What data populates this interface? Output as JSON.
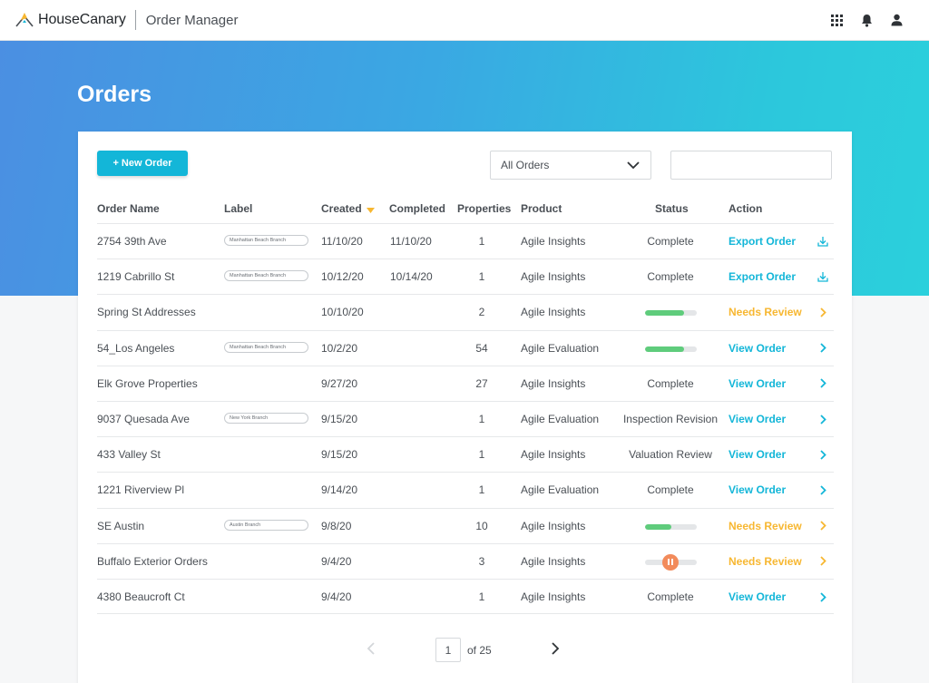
{
  "header": {
    "brand": "HouseCanary",
    "app_title": "Order Manager",
    "icons": [
      "logo-icon",
      "apps-grid-icon",
      "bell-icon",
      "user-icon"
    ]
  },
  "page": {
    "title": "Orders"
  },
  "toolbar": {
    "new_order_label": "+ New Order",
    "filter_value": "All Orders",
    "search_value": ""
  },
  "colors": {
    "accent": "#13b6d8",
    "needs_review": "#f7b731",
    "progress": "#5fcc7c",
    "paused": "#f28b5b",
    "hero_start": "#4b8fe2",
    "hero_end": "#2bd0dc"
  },
  "table": {
    "columns": {
      "order_name": "Order Name",
      "label": "Label",
      "created": "Created",
      "completed": "Completed",
      "properties": "Properties",
      "product": "Product",
      "status": "Status",
      "action": "Action"
    },
    "sort": {
      "column": "Created",
      "direction": "desc"
    },
    "rows": [
      {
        "name": "2754 39th Ave",
        "label": "Manhattan Beach Branch",
        "created": "11/10/20",
        "completed": "11/10/20",
        "properties": "1",
        "product": "Agile Insights",
        "status": "Complete",
        "status_type": "text",
        "progress": null,
        "action": "Export Order",
        "action_color": "blue",
        "action_icon": "download-icon"
      },
      {
        "name": "1219 Cabrillo St",
        "label": "Manhattan Beach Branch",
        "created": "10/12/20",
        "completed": "10/14/20",
        "properties": "1",
        "product": "Agile Insights",
        "status": "Complete",
        "status_type": "text",
        "progress": null,
        "action": "Export Order",
        "action_color": "blue",
        "action_icon": "download-icon"
      },
      {
        "name": "Spring St Addresses",
        "label": "",
        "created": "10/10/20",
        "completed": "",
        "properties": "2",
        "product": "Agile Insights",
        "status": "",
        "status_type": "progress",
        "progress": 0.75,
        "action": "Needs Review",
        "action_color": "orange",
        "action_icon": "chevron-right-icon"
      },
      {
        "name": "54_Los Angeles",
        "label": "Manhattan Beach Branch",
        "created": "10/2/20",
        "completed": "",
        "properties": "54",
        "product": "Agile Evaluation",
        "status": "",
        "status_type": "progress",
        "progress": 0.75,
        "action": "View Order",
        "action_color": "blue",
        "action_icon": "chevron-right-icon"
      },
      {
        "name": "Elk Grove Properties",
        "label": "",
        "created": "9/27/20",
        "completed": "",
        "properties": "27",
        "product": "Agile Insights",
        "status": "Complete",
        "status_type": "text",
        "progress": null,
        "action": "View Order",
        "action_color": "blue",
        "action_icon": "chevron-right-icon"
      },
      {
        "name": "9037 Quesada Ave",
        "label": "New York Branch",
        "created": "9/15/20",
        "completed": "",
        "properties": "1",
        "product": "Agile Evaluation",
        "status": "Inspection Revision",
        "status_type": "text",
        "progress": null,
        "action": "View Order",
        "action_color": "blue",
        "action_icon": "chevron-right-icon"
      },
      {
        "name": "433 Valley St",
        "label": "",
        "created": "9/15/20",
        "completed": "",
        "properties": "1",
        "product": "Agile Insights",
        "status": "Valuation Review",
        "status_type": "text",
        "progress": null,
        "action": "View Order",
        "action_color": "blue",
        "action_icon": "chevron-right-icon"
      },
      {
        "name": "1221 Riverview Pl",
        "label": "",
        "created": "9/14/20",
        "completed": "",
        "properties": "1",
        "product": "Agile Evaluation",
        "status": "Complete",
        "status_type": "text",
        "progress": null,
        "action": "View Order",
        "action_color": "blue",
        "action_icon": "chevron-right-icon"
      },
      {
        "name": "SE Austin",
        "label": "Austin Branch",
        "created": "9/8/20",
        "completed": "",
        "properties": "10",
        "product": "Agile Insights",
        "status": "",
        "status_type": "progress",
        "progress": 0.5,
        "action": "Needs Review",
        "action_color": "orange",
        "action_icon": "chevron-right-icon"
      },
      {
        "name": "Buffalo Exterior Orders",
        "label": "",
        "created": "9/4/20",
        "completed": "",
        "properties": "3",
        "product": "Agile Insights",
        "status": "",
        "status_type": "paused",
        "progress": null,
        "action": "Needs Review",
        "action_color": "orange",
        "action_icon": "chevron-right-icon"
      },
      {
        "name": "4380 Beaucroft Ct",
        "label": "",
        "created": "9/4/20",
        "completed": "",
        "properties": "1",
        "product": "Agile Insights",
        "status": "Complete",
        "status_type": "text",
        "progress": null,
        "action": "View Order",
        "action_color": "blue",
        "action_icon": "chevron-right-icon"
      }
    ]
  },
  "pagination": {
    "page": "1",
    "of_label": "of 25"
  }
}
